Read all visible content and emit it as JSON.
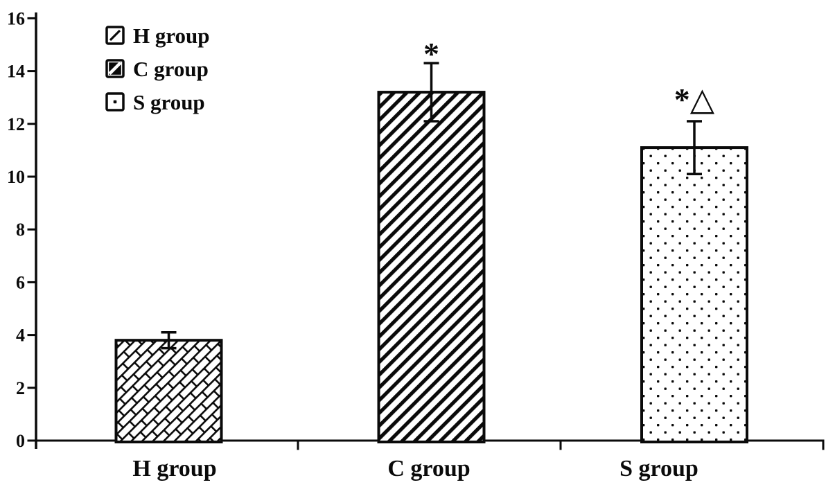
{
  "chart_data": {
    "type": "bar",
    "categories": [
      "H group",
      "C group",
      "S group"
    ],
    "values": [
      3.8,
      13.2,
      11.1
    ],
    "errors": [
      0.3,
      1.1,
      1.0
    ],
    "bar_annotations": [
      "",
      "*",
      "*△"
    ],
    "ylim": [
      0,
      16
    ],
    "yticks": [
      0,
      2,
      4,
      6,
      8,
      10,
      12,
      14,
      16
    ],
    "grid": false,
    "legend_position": "top-left",
    "legend": [
      {
        "label": "H group",
        "pattern": "diagonal-brick-hatch"
      },
      {
        "label": "C group",
        "pattern": "diagonal-stripes"
      },
      {
        "label": "S group",
        "pattern": "dot-grid"
      }
    ],
    "colors": {
      "ink": "#0a0a0a",
      "background": "#ffffff"
    }
  }
}
